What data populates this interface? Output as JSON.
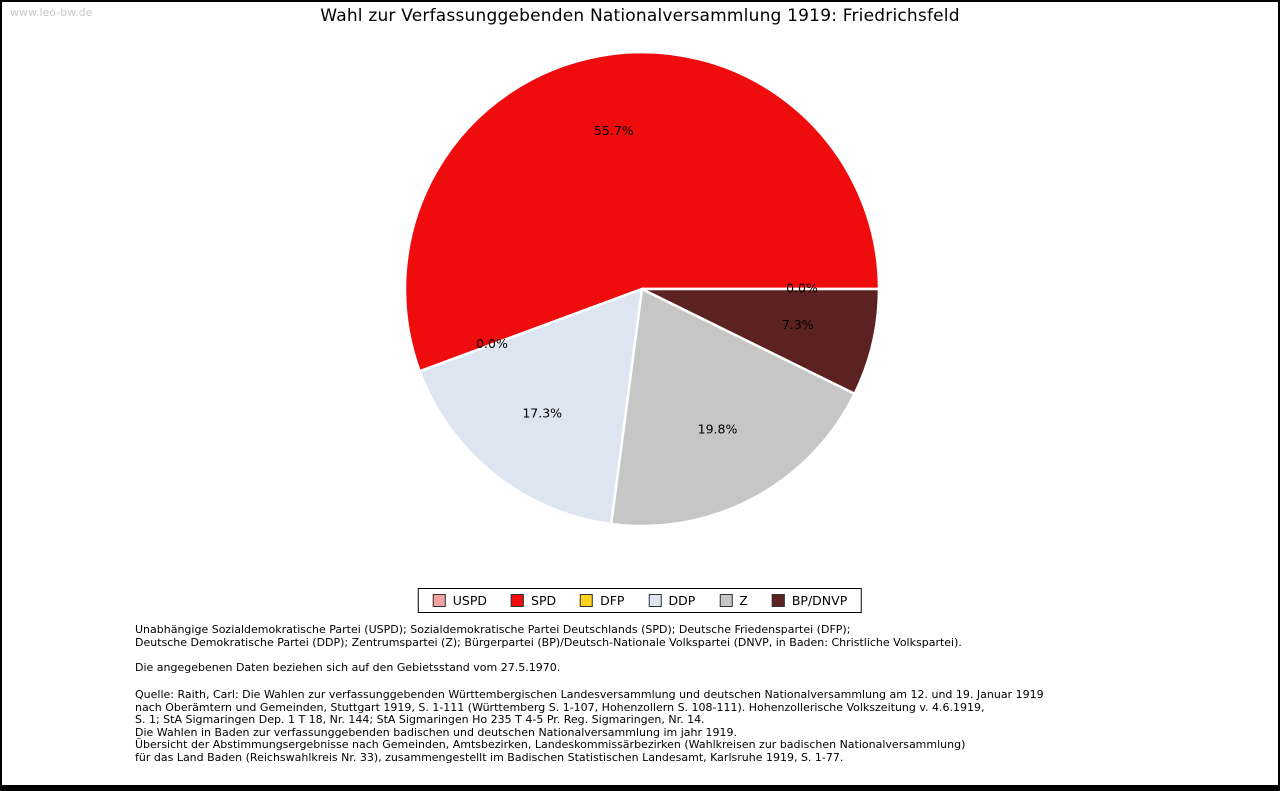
{
  "watermark": "www.leo-bw.de",
  "chart_data": {
    "type": "pie",
    "title": "Wahl zur Verfassunggebenden Nationalversammlung 1919: Friedrichsfeld",
    "unit": "%",
    "start_angle_deg": 0,
    "direction": "counterclockwise",
    "labels_format": "percent_one_decimal",
    "legend_position": "bottom-center",
    "slices": [
      {
        "label": "USPD",
        "value": 0.0,
        "color": "#f2a3a3"
      },
      {
        "label": "SPD",
        "value": 55.7,
        "color": "#ee0c0c"
      },
      {
        "label": "DFP",
        "value": 0.0,
        "color": "#ffd21e"
      },
      {
        "label": "DDP",
        "value": 17.3,
        "color": "#dce5f0"
      },
      {
        "label": "Z",
        "value": 19.8,
        "color": "#c6c6c6"
      },
      {
        "label": "BP/DNVP",
        "value": 7.3,
        "color": "#5c2121"
      }
    ]
  },
  "footnotes": {
    "parties_line1": "Unabhängige Sozialdemokratische Partei (USPD); Sozialdemokratische Partei Deutschlands (SPD); Deutsche Friedenspartei (DFP);",
    "parties_line2": "Deutsche Demokratische Partei (DDP); Zentrumspartei (Z); Bürgerpartei (BP)/Deutsch-Nationale Volkspartei (DNVP, in Baden: Christliche Volkspartei).",
    "territorial_note": "Die angegebenen Daten beziehen sich auf den Gebietsstand vom 27.5.1970.",
    "source_lines": [
      "Quelle: Raith, Carl: Die Wahlen zur verfassunggebenden Württembergischen Landesversammlung und deutschen Nationalversammlung am 12. und 19. Januar 1919",
      "nach Oberämtern und Gemeinden, Stuttgart 1919, S. 1-111 (Württemberg S. 1-107, Hohenzollern S. 108-111). Hohenzollerische Volkszeitung v. 4.6.1919,",
      "S. 1; StA Sigmaringen Dep. 1 T 18, Nr. 144; StA Sigmaringen Ho 235 T 4-5 Pr. Reg. Sigmaringen, Nr. 14.",
      "Die Wahlen in Baden zur verfassunggebenden badischen und deutschen Nationalversammlung im jahr 1919.",
      "Übersicht der Abstimmungsergebnisse nach Gemeinden, Amtsbezirken, Landeskommissärbezirken (Wahlkreisen zur badischen Nationalversammlung)",
      "für das Land Baden (Reichswahlkreis Nr. 33), zusammengestellt im Badischen Statistischen Landesamt, Karlsruhe 1919, S. 1-77."
    ]
  }
}
